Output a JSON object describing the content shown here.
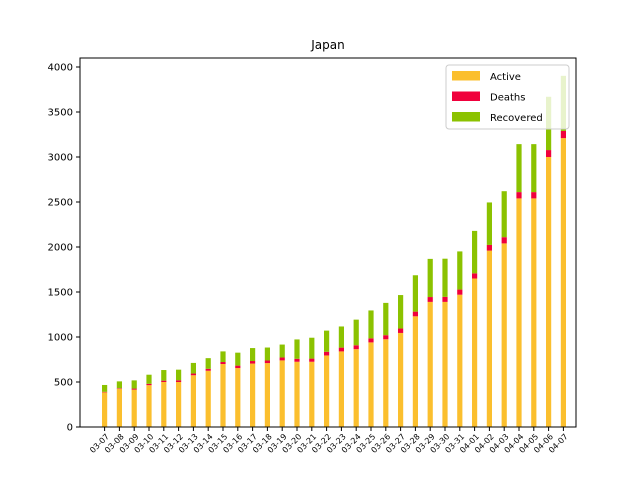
{
  "chart_data": {
    "type": "bar",
    "stacked": true,
    "title": "Japan",
    "xlabel": "",
    "ylabel": "",
    "ylim": [
      0,
      4100
    ],
    "yticks": [
      0,
      500,
      1000,
      1500,
      2000,
      2500,
      3000,
      3500,
      4000
    ],
    "grid": false,
    "legend": "top-right",
    "categories": [
      "03-07",
      "03-08",
      "03-09",
      "03-10",
      "03-11",
      "03-12",
      "03-13",
      "03-14",
      "03-15",
      "03-16",
      "03-17",
      "03-18",
      "03-19",
      "03-20",
      "03-21",
      "03-22",
      "03-23",
      "03-24",
      "03-25",
      "03-26",
      "03-27",
      "03-28",
      "03-29",
      "03-30",
      "03-31",
      "04-01",
      "04-02",
      "04-03",
      "04-04",
      "04-05",
      "04-06",
      "04-07"
    ],
    "series": [
      {
        "name": "Active",
        "color": "#fbbf2e",
        "values": [
          385,
          425,
          415,
          465,
          500,
          500,
          575,
          625,
          700,
          655,
          705,
          710,
          740,
          725,
          725,
          795,
          840,
          865,
          940,
          975,
          1045,
          1230,
          1390,
          1390,
          1470,
          1650,
          1960,
          2040,
          2540,
          2540,
          3000,
          3210
        ]
      },
      {
        "name": "Deaths",
        "color": "#f0003c",
        "values": [
          6,
          6,
          12,
          15,
          15,
          19,
          19,
          22,
          22,
          27,
          28,
          29,
          32,
          33,
          35,
          41,
          42,
          43,
          45,
          45,
          49,
          52,
          54,
          56,
          57,
          57,
          63,
          69,
          70,
          70,
          77,
          80
        ]
      },
      {
        "name": "Recovered",
        "color": "#8bc200",
        "values": [
          76,
          76,
          91,
          101,
          118,
          118,
          118,
          118,
          118,
          144,
          144,
          144,
          144,
          215,
          232,
          235,
          235,
          285,
          310,
          359,
          372,
          404,
          424,
          424,
          424,
          472,
          472,
          511,
          533,
          533,
          592,
          612
        ]
      }
    ]
  }
}
